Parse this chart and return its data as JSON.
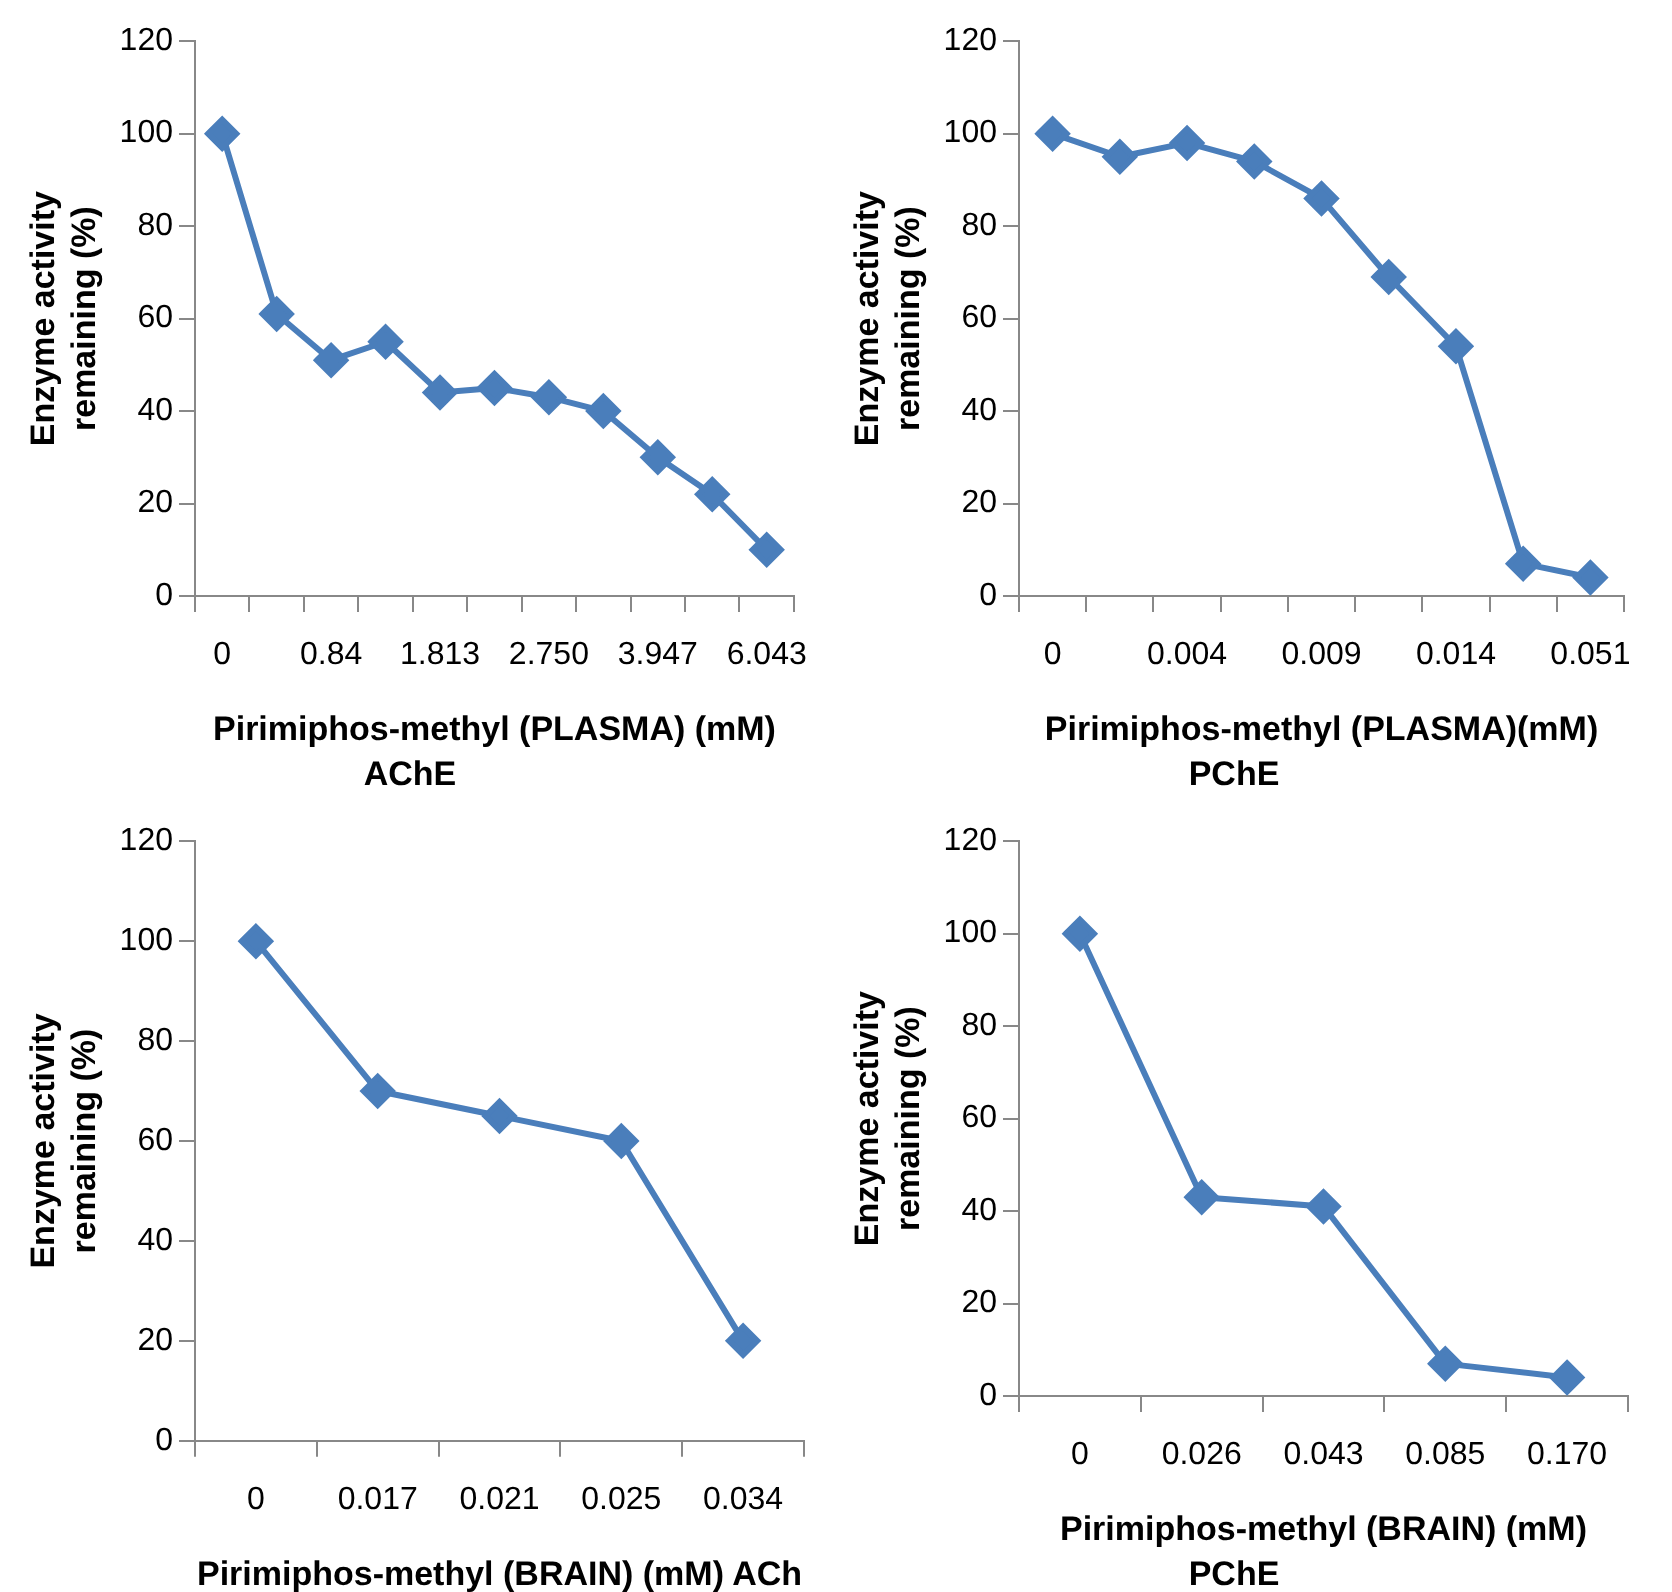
{
  "chart_data": [
    {
      "type": "line",
      "title": "AChE",
      "xlabel": "Pirimiphos-methyl (PLASMA) (mM)",
      "ylabel": "Enzyme activity remaining (%)",
      "categories": [
        "0",
        null,
        "0.84",
        null,
        "1.813",
        null,
        "2.750",
        null,
        "3.947",
        null,
        "6.043"
      ],
      "series": [
        {
          "color": "#4a7ebb",
          "values": [
            100,
            61,
            51,
            55,
            44,
            45,
            43,
            40,
            30,
            22,
            10
          ]
        }
      ],
      "ylim": [
        0,
        120
      ],
      "yticks": [
        0,
        20,
        40,
        60,
        80,
        100,
        120
      ],
      "grid": false,
      "legend": false,
      "marker": "diamond",
      "line_style": "solid"
    },
    {
      "type": "line",
      "title": "PChE",
      "xlabel": "Pirimiphos-methyl (PLASMA)(mM)",
      "ylabel": "Enzyme activity remaining (%)",
      "categories": [
        "0",
        null,
        "0.004",
        null,
        "0.009",
        null,
        "0.014",
        null,
        "0.051"
      ],
      "series": [
        {
          "color": "#4a7ebb",
          "values": [
            100,
            95,
            98,
            94,
            86,
            69,
            54,
            7,
            4
          ]
        }
      ],
      "ylim": [
        0,
        120
      ],
      "yticks": [
        0,
        20,
        40,
        60,
        80,
        100,
        120
      ],
      "grid": false,
      "legend": false,
      "marker": "diamond",
      "line_style": "solid"
    },
    {
      "type": "line",
      "xlabel": "Pirimiphos-methyl (BRAIN) (mM) ACh",
      "ylabel": "Enzyme activity remaining (%)",
      "categories": [
        "0",
        "0.017",
        "0.021",
        "0.025",
        "0.034"
      ],
      "series": [
        {
          "color": "#4a7ebb",
          "values": [
            100,
            70,
            65,
            60,
            20
          ]
        }
      ],
      "ylim": [
        0,
        120
      ],
      "yticks": [
        0,
        20,
        40,
        60,
        80,
        100,
        120
      ],
      "grid": false,
      "legend": false,
      "marker": "diamond",
      "line_style": "solid"
    },
    {
      "type": "line",
      "title": "PChE",
      "xlabel": "Pirimiphos-methyl (BRAIN) (mM)",
      "ylabel": "Enzyme activity remaining (%)",
      "categories": [
        "0",
        "0.026",
        "0.043",
        "0.085",
        "0.170"
      ],
      "series": [
        {
          "color": "#4a7ebb",
          "values": [
            100,
            43,
            41,
            7,
            4
          ]
        }
      ],
      "ylim": [
        0,
        120
      ],
      "yticks": [
        0,
        20,
        40,
        60,
        80,
        100,
        120
      ],
      "grid": false,
      "legend": false,
      "marker": "diamond",
      "line_style": "solid"
    }
  ]
}
